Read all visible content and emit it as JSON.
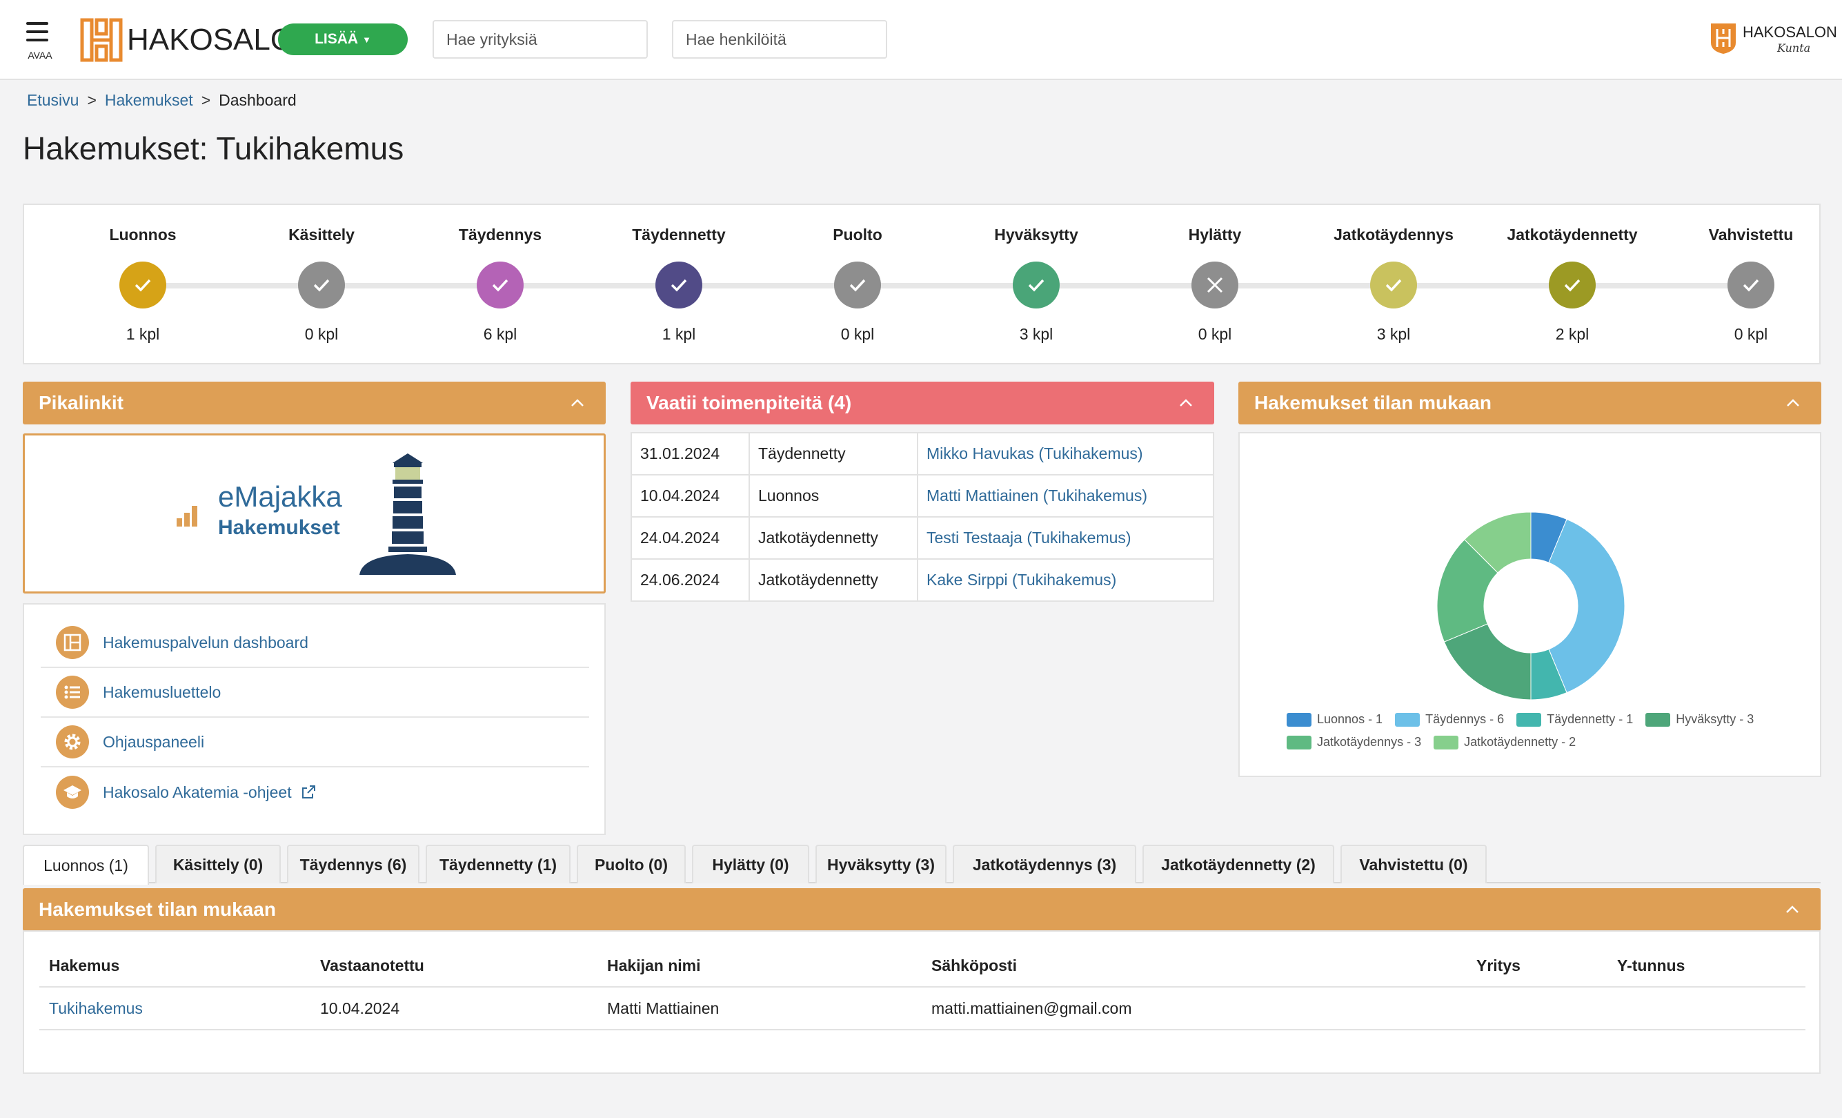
{
  "header": {
    "menu_caption": "AVAA",
    "logo_text": "HAKOSALO",
    "add_button": "LISÄÄ",
    "search_companies_placeholder": "Hae yrityksiä",
    "search_people_placeholder": "Hae henkilöitä",
    "kunta_logo_text": "HAKOSALON",
    "kunta_logo_sub": "Kunta"
  },
  "breadcrumb": {
    "home": "Etusivu",
    "section": "Hakemukset",
    "current": "Dashboard",
    "separator": ">"
  },
  "page_title": "Hakemukset: Tukihakemus",
  "statuses": [
    {
      "label": "Luonnos",
      "count": "1 kpl",
      "color": "#d6a317",
      "icon": "check-icon"
    },
    {
      "label": "Käsittely",
      "count": "0 kpl",
      "color": "#8e8e8e",
      "icon": "check-icon"
    },
    {
      "label": "Täydennys",
      "count": "6 kpl",
      "color": "#b463b6",
      "icon": "check-icon"
    },
    {
      "label": "Täydennetty",
      "count": "1 kpl",
      "color": "#514b87",
      "icon": "check-icon"
    },
    {
      "label": "Puolto",
      "count": "0 kpl",
      "color": "#8e8e8e",
      "icon": "check-icon"
    },
    {
      "label": "Hyväksytty",
      "count": "3 kpl",
      "color": "#4aa578",
      "icon": "check-icon"
    },
    {
      "label": "Hylätty",
      "count": "0 kpl",
      "color": "#8e8e8e",
      "icon": "cross-icon"
    },
    {
      "label": "Jatkotäydennys",
      "count": "3 kpl",
      "color": "#c9c25e",
      "icon": "check-icon"
    },
    {
      "label": "Jatkotäydennetty",
      "count": "2 kpl",
      "color": "#9c9a24",
      "icon": "check-icon"
    },
    {
      "label": "Vahvistettu",
      "count": "0 kpl",
      "color": "#8e8e8e",
      "icon": "check-icon"
    }
  ],
  "quicklinks": {
    "title": "Pikalinkit",
    "emajakka_title": "eMajakka",
    "emajakka_sub": "Hakemukset",
    "items": [
      {
        "label": "Hakemuspalvelun dashboard",
        "icon": "dashboard-icon"
      },
      {
        "label": "Hakemusluettelo",
        "icon": "list-icon"
      },
      {
        "label": "Ohjauspaneeli",
        "icon": "gear-icon"
      },
      {
        "label": "Hakosalo Akatemia -ohjeet",
        "icon": "graduation-cap-icon",
        "external_icon": "external-link-icon"
      }
    ]
  },
  "action_required": {
    "title": "Vaatii toimenpiteitä (4)",
    "rows": [
      {
        "date": "31.01.2024",
        "status": "Täydennetty",
        "link": "Mikko Havukas (Tukihakemus)"
      },
      {
        "date": "10.04.2024",
        "status": "Luonnos",
        "link": "Matti Mattiainen (Tukihakemus)"
      },
      {
        "date": "24.04.2024",
        "status": "Jatkotäydennetty",
        "link": "Testi Testaaja (Tukihakemus)"
      },
      {
        "date": "24.06.2024",
        "status": "Jatkotäydennetty",
        "link": "Kake Sirppi (Tukihakemus)"
      }
    ]
  },
  "chart_panel": {
    "title": "Hakemukset tilan mukaan"
  },
  "chart_data": {
    "type": "pie",
    "variant": "donut",
    "categories": [
      "Luonnos",
      "Täydennys",
      "Täydennetty",
      "Hyväksytty",
      "Jatkotäydennys",
      "Jatkotäydennetty"
    ],
    "values": [
      1,
      6,
      1,
      3,
      3,
      2
    ],
    "legend_labels": [
      "Luonnos - 1",
      "Täydennys - 6",
      "Täydennetty - 1",
      "Hyväksytty - 3",
      "Jatkotäydennys - 3",
      "Jatkotäydennetty - 2"
    ],
    "colors": [
      "#3b8dd0",
      "#6cc0e8",
      "#43b6ae",
      "#4ea67a",
      "#5fba82",
      "#86cf8c"
    ],
    "legend_position": "bottom"
  },
  "tabs": [
    {
      "label": "Luonnos (1)",
      "active": true
    },
    {
      "label": "Käsittely (0)"
    },
    {
      "label": "Täydennys (6)"
    },
    {
      "label": "Täydennetty (1)"
    },
    {
      "label": "Puolto (0)"
    },
    {
      "label": "Hylätty (0)"
    },
    {
      "label": "Hyväksytty (3)"
    },
    {
      "label": "Jatkotäydennys (3)"
    },
    {
      "label": "Jatkotäydennetty (2)"
    },
    {
      "label": "Vahvistettu (0)"
    }
  ],
  "list_panel": {
    "title": "Hakemukset tilan mukaan",
    "columns": [
      "Hakemus",
      "Vastaanotettu",
      "Hakijan nimi",
      "Sähköposti",
      "Yritys",
      "Y-tunnus"
    ],
    "rows": [
      [
        "Tukihakemus",
        "10.04.2024",
        "Matti Mattiainen",
        "matti.mattiainen@gmail.com",
        "",
        ""
      ]
    ]
  },
  "colors": {
    "accent_orange": "#de9f55",
    "alert_red": "#ec6f74",
    "link_blue": "#2f6a99",
    "add_green": "#2fa84f"
  }
}
